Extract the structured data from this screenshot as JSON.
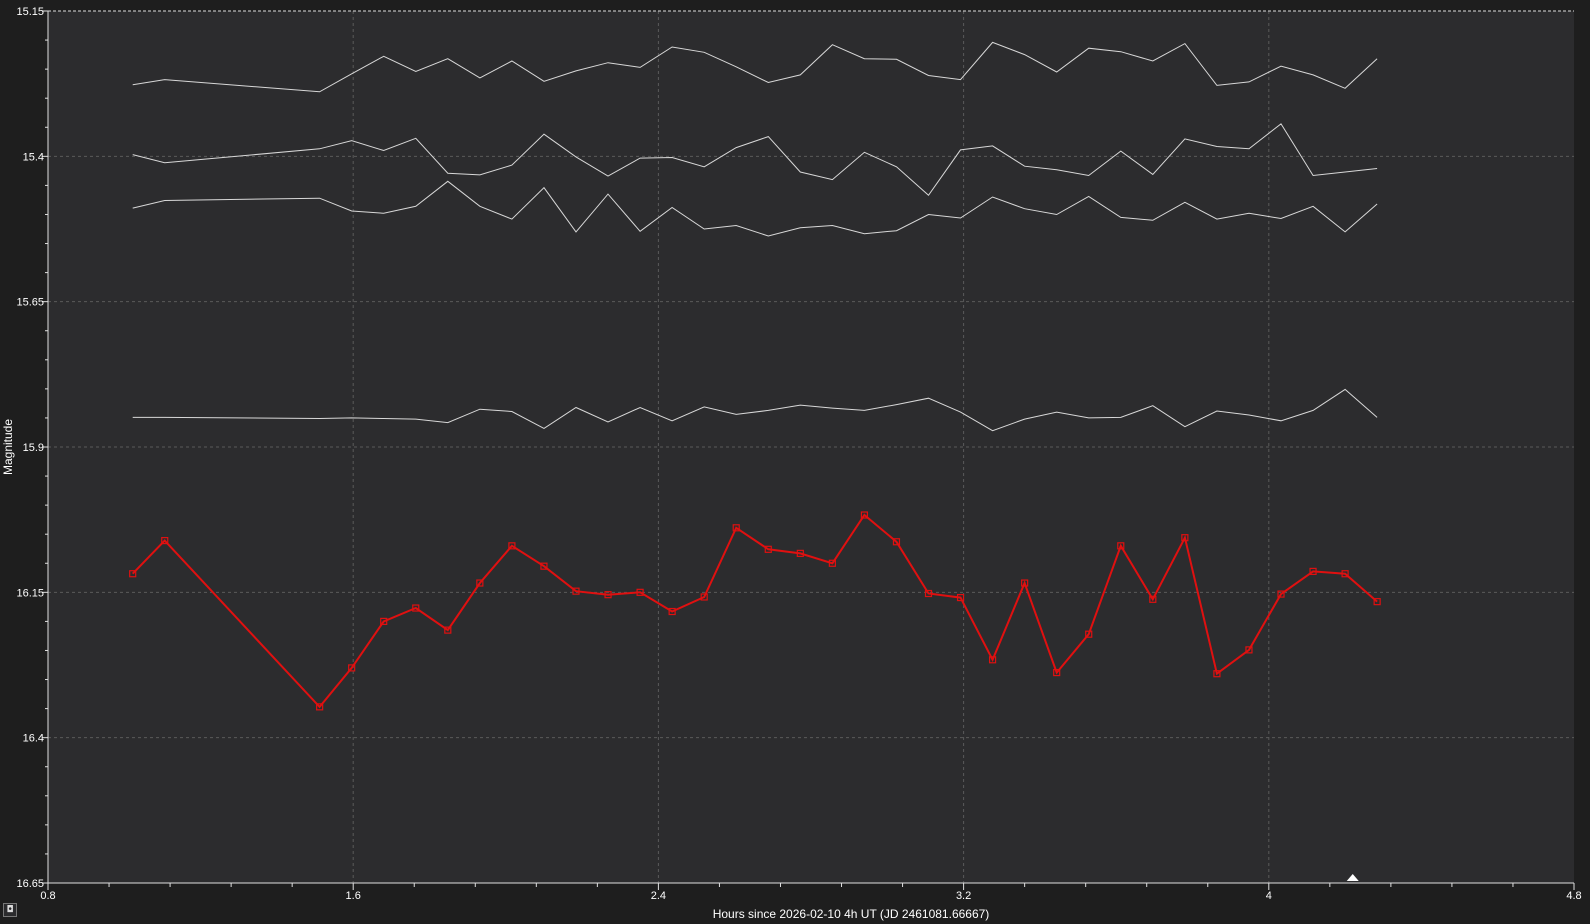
{
  "chart_data": {
    "type": "line",
    "xlabel": "Hours since 2026-02-10 4h UT (JD 2461081.66667)",
    "ylabel": "Magnitude",
    "xlim": [
      0.8,
      4.8
    ],
    "ylim": [
      15.15,
      16.65
    ],
    "y_inverted": true,
    "grid": true,
    "legend": "none",
    "x_ticks": [
      "0.8",
      "1.6",
      "2.4",
      "3.2",
      "4",
      "4.8"
    ],
    "y_ticks": [
      "15.15",
      "15.4",
      "15.65",
      "15.9",
      "16.15",
      "16.4",
      "16.65"
    ],
    "x": [
      1.022,
      1.106,
      1.512,
      1.596,
      1.68,
      1.764,
      1.848,
      1.932,
      2.016,
      2.1,
      2.184,
      2.268,
      2.352,
      2.436,
      2.52,
      2.604,
      2.688,
      2.772,
      2.856,
      2.94,
      3.024,
      3.108,
      3.192,
      3.276,
      3.36,
      3.444,
      3.528,
      3.612,
      3.696,
      3.78,
      3.864,
      3.948,
      4.032,
      4.116,
      4.2,
      4.284
    ],
    "series": [
      {
        "color": "#d8d8d8",
        "marker": "none",
        "values": [
          15.277,
          15.268,
          15.289,
          15.258,
          15.228,
          15.254,
          15.232,
          15.265,
          15.236,
          15.271,
          15.253,
          15.239,
          15.247,
          15.212,
          15.221,
          15.246,
          15.273,
          15.26,
          15.208,
          15.232,
          15.233,
          15.261,
          15.268,
          15.204,
          15.225,
          15.255,
          15.214,
          15.22,
          15.236,
          15.206,
          15.278,
          15.272,
          15.245,
          15.26,
          15.283,
          15.232
        ]
      },
      {
        "color": "#d8d8d8",
        "marker": "none",
        "values": [
          15.397,
          15.411,
          15.387,
          15.373,
          15.39,
          15.369,
          15.429,
          15.432,
          15.415,
          15.362,
          15.401,
          15.434,
          15.403,
          15.402,
          15.418,
          15.385,
          15.366,
          15.427,
          15.44,
          15.393,
          15.418,
          15.467,
          15.389,
          15.382,
          15.417,
          15.423,
          15.433,
          15.391,
          15.431,
          15.37,
          15.383,
          15.387,
          15.344,
          15.433,
          15.427,
          15.421
        ]
      },
      {
        "color": "#d8d8d8",
        "marker": "none",
        "values": [
          15.489,
          15.476,
          15.472,
          15.494,
          15.498,
          15.486,
          15.443,
          15.486,
          15.508,
          15.454,
          15.53,
          15.465,
          15.529,
          15.488,
          15.525,
          15.519,
          15.537,
          15.523,
          15.519,
          15.533,
          15.528,
          15.5,
          15.506,
          15.47,
          15.49,
          15.5,
          15.469,
          15.505,
          15.51,
          15.479,
          15.508,
          15.498,
          15.507,
          15.486,
          15.53,
          15.482
        ]
      },
      {
        "color": "#d8d8d8",
        "marker": "none",
        "values": [
          15.849,
          15.849,
          15.851,
          15.85,
          15.851,
          15.852,
          15.858,
          15.835,
          15.839,
          15.868,
          15.832,
          15.857,
          15.832,
          15.855,
          15.831,
          15.844,
          15.837,
          15.828,
          15.833,
          15.837,
          15.827,
          15.816,
          15.84,
          15.872,
          15.852,
          15.84,
          15.85,
          15.849,
          15.829,
          15.865,
          15.838,
          15.845,
          15.855,
          15.837,
          15.801,
          15.849
        ]
      },
      {
        "color": "#e01010",
        "marker": "square",
        "values": [
          16.118,
          16.061,
          16.347,
          16.28,
          16.2,
          16.177,
          16.215,
          16.134,
          16.07,
          16.105,
          16.148,
          16.154,
          16.15,
          16.183,
          16.158,
          16.039,
          16.076,
          16.083,
          16.1,
          16.017,
          16.063,
          16.152,
          16.159,
          16.266,
          16.134,
          16.288,
          16.222,
          16.07,
          16.162,
          16.056,
          16.29,
          16.249,
          16.153,
          16.114,
          16.118,
          16.166
        ]
      }
    ]
  },
  "ui": {
    "corner_button_glyph": "◘"
  }
}
